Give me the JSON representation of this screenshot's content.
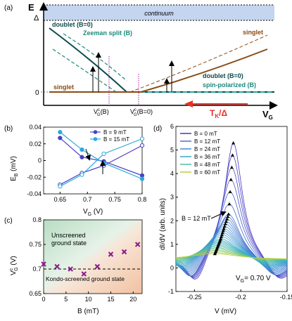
{
  "panel_a": {
    "label": "(a)",
    "axis_e": "E",
    "axis_vg": "V",
    "axis_vg_sub": "G",
    "delta": "Δ",
    "zero": "0",
    "continuum": "continuum",
    "doublet_b0_left": "doublet (B=0)",
    "zeeman": "Zeeman split (B)",
    "singlet_right": "singlet",
    "singlet_left": "singlet",
    "doublet_b0_right": "doublet (B=0)",
    "spin_polarized": "spin-polarized (B)",
    "vgc_b": "V",
    "vgc_b_sup": "c",
    "vgc_b_sub": "G",
    "vgc_b_arg": "(B)",
    "vgc_b0_arg": "(B=0)",
    "tk": "T",
    "tk_sub": "K",
    "tk_rest": "/Δ",
    "colors": {
      "doublet": "#0d4a4a",
      "zeeman": "#1a8a7a",
      "singlet": "#8a4b14",
      "continuum": "#c3d5ef",
      "marker": "#a020a0",
      "tk": "#e8302a"
    }
  },
  "panel_b": {
    "label": "(b)",
    "chart_data": {
      "type": "line",
      "xlabel": "V_G (V)",
      "ylabel": "E_B (mV)",
      "xlim": [
        0.62,
        0.8
      ],
      "ylim": [
        -0.04,
        0.04
      ],
      "xticks": [
        "0.65",
        "0.7",
        "0.75",
        "0.8"
      ],
      "yticks": [
        "-0.04",
        "-0.02",
        "0",
        "0.02",
        "0.04"
      ],
      "legend_position": "top-right",
      "series": [
        {
          "name": "B = 9 mT",
          "color": "#4a3fc7",
          "x": [
            0.65,
            0.69,
            0.73,
            0.8
          ],
          "y_upper": [
            0.027,
            0.004,
            -0.001,
            -0.018
          ],
          "y_lower": [
            -0.029,
            -0.015,
            -0.006,
            0.018
          ]
        },
        {
          "name": "B = 15 mT",
          "color": "#2ba9d9",
          "x": [
            0.65,
            0.69,
            0.73,
            0.8
          ],
          "y_upper": [
            0.034,
            0.013,
            -0.003,
            -0.022
          ],
          "y_lower": [
            -0.031,
            -0.017,
            0.008,
            0.026
          ]
        }
      ]
    },
    "legend": [
      {
        "label": "B = 9 mT",
        "color": "#4a3fc7"
      },
      {
        "label": "B = 15 mT",
        "color": "#2ba9d9"
      }
    ],
    "xaxis_label": "V",
    "xaxis_sub": "G",
    "xaxis_unit": " (V)",
    "yaxis_label": "E",
    "yaxis_sub": "B",
    "yaxis_unit": " (mV)"
  },
  "panel_c": {
    "label": "(c)",
    "chart_data": {
      "type": "scatter",
      "xlabel": "B (mT)",
      "ylabel": "V_G^c (V)",
      "xlim": [
        0,
        22
      ],
      "ylim": [
        0.65,
        0.8
      ],
      "xticks": [
        "0",
        "5",
        "10",
        "15",
        "20"
      ],
      "yticks": [
        "0.65",
        "0.7",
        "0.75",
        "0.8"
      ],
      "x": [
        0,
        3,
        6,
        9,
        12,
        15,
        18,
        21
      ],
      "y": [
        0.71,
        0.705,
        0.7,
        0.69,
        0.705,
        0.73,
        0.735,
        0.75
      ],
      "dashed_level": 0.7
    },
    "unscreened_1": "Unscreened",
    "unscreened_2": "ground state",
    "kondo": "Kondo-screened ground state",
    "xaxis_label": "B (mT)",
    "yaxis_label": "V",
    "yaxis_sup": "c",
    "yaxis_sub": "G",
    "yaxis_unit": " (V)"
  },
  "panel_d": {
    "label": "(d)",
    "chart_data": {
      "type": "line",
      "xlabel": "V (mV)",
      "ylabel": "dI/dV (arb. units)",
      "xlim": [
        -0.27,
        -0.15
      ],
      "ylim": [
        -1,
        6
      ],
      "xticks": [
        "-0.25",
        "-0.2",
        "-0.15"
      ],
      "yticks": [
        "-1",
        "0",
        "1",
        "2",
        "3",
        "4",
        "5",
        "6"
      ],
      "gate": "V_G= 0.70 V",
      "series": [
        {
          "name": "B = 0 mT",
          "color": "#4a34c4",
          "peak_x": -0.208,
          "peak_y": 5.3
        },
        {
          "name": "B = 12 mT",
          "color": "#4a6fd0",
          "peak_x": -0.213,
          "peak_y": 2.3
        },
        {
          "name": "B = 24 mT",
          "color": "#3f8bd4",
          "peak_x": -0.218,
          "peak_y": 1.7
        },
        {
          "name": "B = 36 mT",
          "color": "#3aa6c9",
          "peak_x": -0.222,
          "peak_y": 1.2
        },
        {
          "name": "B = 48 mT",
          "color": "#4cbfa8",
          "peak_x": -0.225,
          "peak_y": 0.9
        },
        {
          "name": "B = 60 mT",
          "color": "#b5cf3f",
          "peak_x": -0.228,
          "peak_y": 0.6
        }
      ]
    },
    "annotation": "B = 12 mT",
    "gate_label": "V",
    "gate_sub": "G",
    "gate_value": "= 0.70 V",
    "xaxis_label": "V (mV)",
    "yaxis_label": "dI/dV (arb. units)"
  }
}
